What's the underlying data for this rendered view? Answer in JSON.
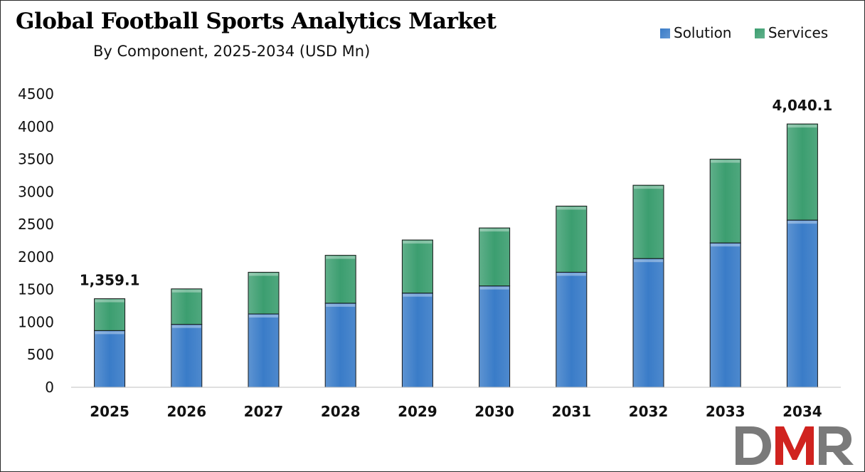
{
  "chart_data": {
    "type": "bar",
    "stacked": true,
    "title": "Global Football Sports Analytics Market",
    "subtitle": "By Component, 2025-2034 (USD Mn)",
    "xlabel": "",
    "ylabel": "",
    "categories": [
      "2025",
      "2026",
      "2027",
      "2028",
      "2029",
      "2030",
      "2031",
      "2032",
      "2033",
      "2034"
    ],
    "series": [
      {
        "name": "Solution",
        "color": "#3a7cc8",
        "values": [
          870,
          965,
          1125,
          1290,
          1445,
          1555,
          1765,
          1975,
          2215,
          2565
        ]
      },
      {
        "name": "Services",
        "color": "#3c9e70",
        "values": [
          489.1,
          545,
          640,
          735,
          815,
          890,
          1015,
          1125,
          1285,
          1475.1
        ]
      }
    ],
    "yticks": [
      0,
      500,
      1000,
      1500,
      2000,
      2500,
      3000,
      3500,
      4000,
      4500
    ],
    "ylim": [
      0,
      4500
    ],
    "data_labels": [
      {
        "category": "2025",
        "text": "1,359.1"
      },
      {
        "category": "2034",
        "text": "4,040.1"
      }
    ],
    "legend_position": "top-right",
    "grid": false
  },
  "logo": {
    "text": "DMR",
    "colors": [
      "#7a7a7a",
      "#d0231f"
    ]
  }
}
